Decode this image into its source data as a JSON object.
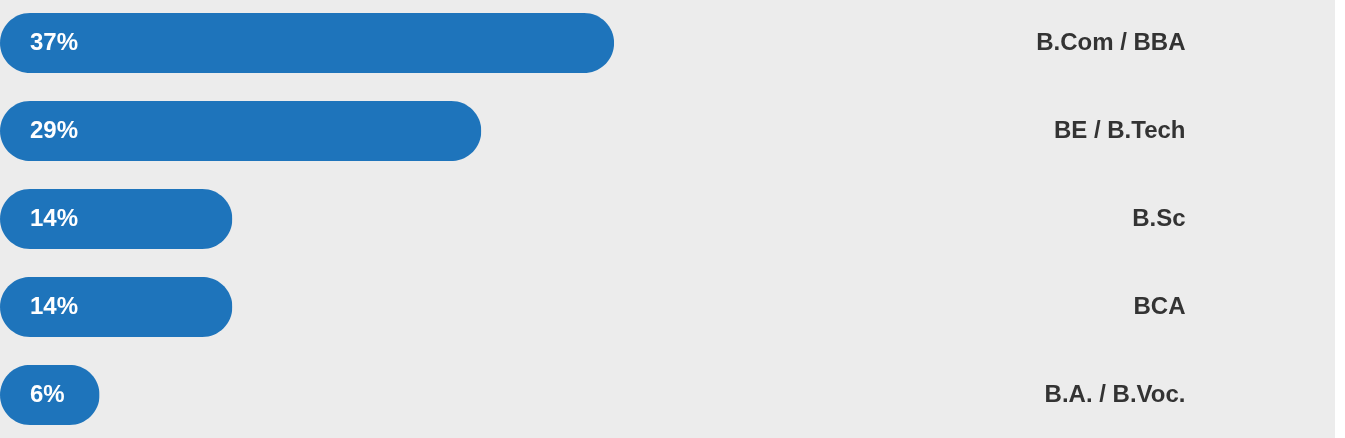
{
  "chart_data": {
    "type": "bar",
    "orientation": "horizontal",
    "categories": [
      "B.Com / BBA",
      "BE / B.Tech",
      "B.Sc",
      "BCA",
      "B.A. / B.Voc."
    ],
    "values": [
      37,
      29,
      14,
      14,
      6
    ],
    "value_labels": [
      "37%",
      "29%",
      "14%",
      "14%",
      "6%"
    ],
    "color": "#1e74bb"
  }
}
